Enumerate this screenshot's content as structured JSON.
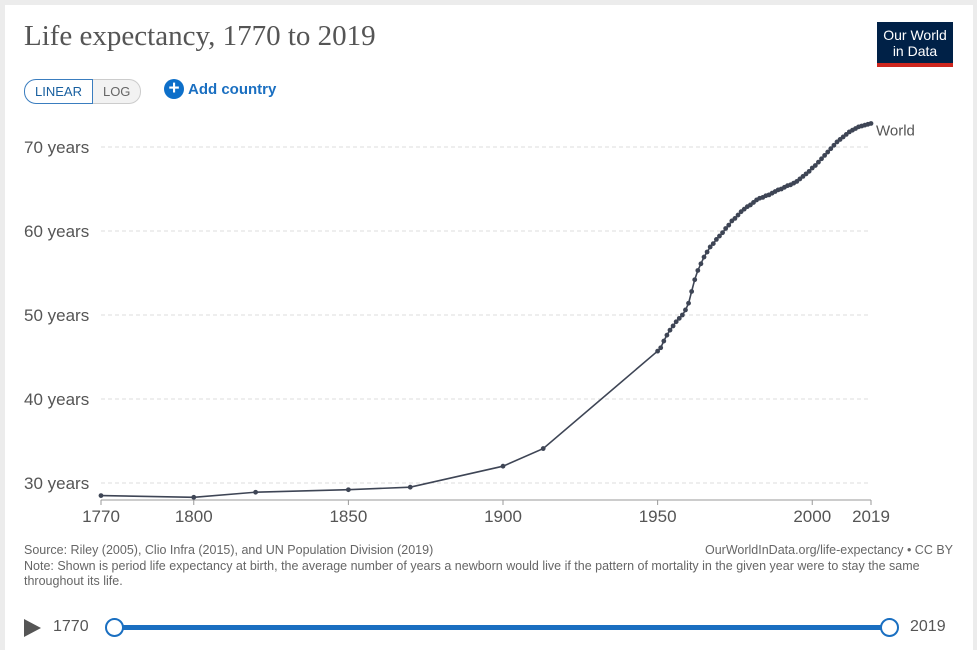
{
  "header": {
    "title": "Life expectancy, 1770 to 2019",
    "logo_line1": "Our World",
    "logo_line2": "in Data"
  },
  "controls": {
    "linear_label": "LINEAR",
    "log_label": "LOG",
    "add_country_label": "Add country"
  },
  "footer": {
    "source": "Source: Riley (2005), Clio Infra (2015), and UN Population Division (2019)",
    "note": "Note: Shown is period life expectancy at birth, the average number of years a newborn would live if the pattern of mortality in the given year were to stay the same throughout its life.",
    "credit": "OurWorldInData.org/life-expectancy • CC BY"
  },
  "timeline": {
    "start_label": "1770",
    "end_label": "2019"
  },
  "colors": {
    "line": "#3e4555",
    "grid": "#dddddd",
    "accent": "#1a6fc1"
  },
  "chart_data": {
    "type": "line",
    "title": "Life expectancy, 1770 to 2019",
    "xlabel": "",
    "ylabel": "",
    "xlim": [
      1770,
      2019
    ],
    "ylim": [
      28,
      73
    ],
    "x_ticks": [
      1770,
      1800,
      1850,
      1900,
      1950,
      2000,
      2019
    ],
    "y_ticks": [
      30,
      40,
      50,
      60,
      70
    ],
    "y_tick_suffix": " years",
    "grid": "horizontal dashed",
    "series": [
      {
        "name": "World",
        "color": "#3e4555",
        "x": [
          1770,
          1800,
          1820,
          1850,
          1870,
          1900,
          1913,
          1950,
          1951,
          1952,
          1953,
          1954,
          1955,
          1956,
          1957,
          1958,
          1959,
          1960,
          1961,
          1962,
          1963,
          1964,
          1965,
          1966,
          1967,
          1968,
          1969,
          1970,
          1971,
          1972,
          1973,
          1974,
          1975,
          1976,
          1977,
          1978,
          1979,
          1980,
          1981,
          1982,
          1983,
          1984,
          1985,
          1986,
          1987,
          1988,
          1989,
          1990,
          1991,
          1992,
          1993,
          1994,
          1995,
          1996,
          1997,
          1998,
          1999,
          2000,
          2001,
          2002,
          2003,
          2004,
          2005,
          2006,
          2007,
          2008,
          2009,
          2010,
          2011,
          2012,
          2013,
          2014,
          2015,
          2016,
          2017,
          2018,
          2019
        ],
        "y": [
          28.5,
          28.3,
          28.9,
          29.2,
          29.5,
          32.0,
          34.1,
          45.7,
          46.1,
          46.9,
          47.6,
          48.2,
          48.7,
          49.2,
          49.6,
          50.0,
          50.6,
          51.4,
          52.8,
          54.2,
          55.3,
          56.1,
          56.9,
          57.5,
          58.1,
          58.5,
          59.0,
          59.4,
          59.8,
          60.3,
          60.7,
          61.2,
          61.5,
          61.9,
          62.3,
          62.6,
          62.9,
          63.1,
          63.4,
          63.7,
          63.9,
          64.0,
          64.2,
          64.3,
          64.5,
          64.7,
          64.9,
          65.0,
          65.2,
          65.4,
          65.5,
          65.7,
          65.9,
          66.2,
          66.5,
          66.8,
          67.1,
          67.5,
          67.8,
          68.2,
          68.6,
          69.0,
          69.4,
          69.8,
          70.2,
          70.6,
          70.9,
          71.2,
          71.5,
          71.8,
          72.0,
          72.2,
          72.4,
          72.5,
          72.6,
          72.7,
          72.8
        ]
      }
    ]
  }
}
